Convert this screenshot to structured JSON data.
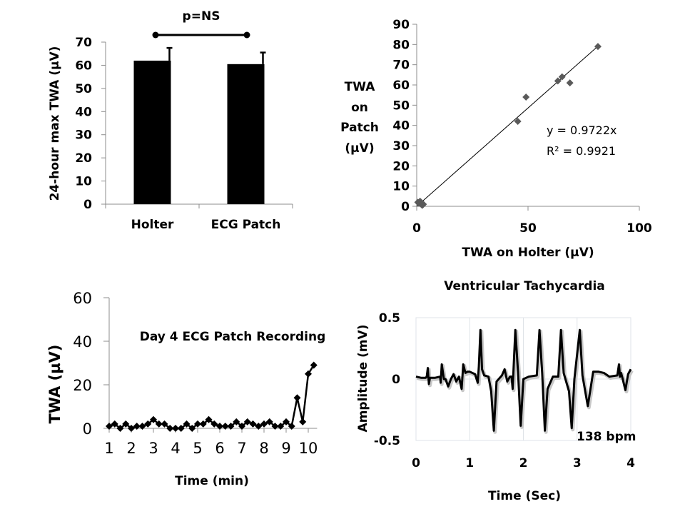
{
  "chart_data": [
    {
      "id": "bar",
      "type": "bar",
      "title": "",
      "categories": [
        "Holter",
        "ECG Patch"
      ],
      "values": [
        62,
        60.5
      ],
      "error_upper": [
        5.5,
        5
      ],
      "ylabel": "24-hour max TWA (µV)",
      "xlabel": "",
      "ylim": [
        0,
        70
      ],
      "yticks": [
        0,
        10,
        20,
        30,
        40,
        50,
        60,
        70
      ],
      "bar_color": "#000000",
      "annotation": "p=NS"
    },
    {
      "id": "scatter",
      "type": "scatter",
      "xlabel": "TWA on Holter (µV)",
      "ylabel_lines": [
        "TWA",
        "on",
        "Patch",
        "(µV)"
      ],
      "xlim": [
        0,
        100
      ],
      "ylim": [
        0,
        90
      ],
      "xticks": [
        0,
        50,
        100
      ],
      "yticks": [
        0,
        10,
        20,
        30,
        40,
        50,
        60,
        70,
        80,
        90
      ],
      "points": [
        {
          "x": 0.5,
          "y": 2
        },
        {
          "x": 1,
          "y": 1.5
        },
        {
          "x": 1.5,
          "y": 2.5
        },
        {
          "x": 2,
          "y": 1
        },
        {
          "x": 2.5,
          "y": 0.5
        },
        {
          "x": 3,
          "y": 1
        },
        {
          "x": 2,
          "y": 2
        },
        {
          "x": 45.4,
          "y": 42
        },
        {
          "x": 49.1,
          "y": 54
        },
        {
          "x": 63.4,
          "y": 62
        },
        {
          "x": 65.3,
          "y": 64
        },
        {
          "x": 68.8,
          "y": 61
        },
        {
          "x": 81.4,
          "y": 79
        }
      ],
      "trendline": {
        "slope": 0.9722,
        "x_range": [
          0,
          81.4
        ]
      },
      "equation": "y = 0.9722x",
      "r_squared": "R² = 0.9921",
      "marker_color": "#5a5a5a"
    },
    {
      "id": "line",
      "type": "line",
      "title": "Day 4 ECG Patch Recording",
      "xlabel": "Time (min)",
      "ylabel": "TWA (µV)",
      "xlim": [
        1,
        10.25
      ],
      "ylim": [
        0,
        60
      ],
      "xticks": [
        1,
        2,
        3,
        4,
        5,
        6,
        7,
        8,
        9,
        10
      ],
      "yticks": [
        0,
        20,
        40,
        60
      ],
      "x": [
        1,
        1.25,
        1.5,
        1.75,
        2,
        2.25,
        2.5,
        2.75,
        3,
        3.25,
        3.5,
        3.75,
        4,
        4.25,
        4.5,
        4.75,
        5,
        5.25,
        5.5,
        5.75,
        6,
        6.25,
        6.5,
        6.75,
        7,
        7.25,
        7.5,
        7.75,
        8,
        8.25,
        8.5,
        8.75,
        9,
        9.25,
        9.5,
        9.75,
        10,
        10.25
      ],
      "y": [
        1,
        2,
        0,
        2,
        0,
        1,
        1,
        2,
        4,
        2,
        2,
        0,
        0,
        0,
        2,
        0,
        2,
        2,
        4,
        2,
        1,
        1,
        1,
        3,
        1,
        3,
        2,
        1,
        2,
        3,
        1,
        1,
        3,
        1,
        14,
        3,
        25,
        29
      ]
    },
    {
      "id": "ecg",
      "type": "line",
      "title": "Ventricular Tachycardia",
      "xlabel": "Time (Sec)",
      "ylabel": "Amplitude (mV)",
      "xlim": [
        0,
        4
      ],
      "ylim": [
        -0.5,
        0.5
      ],
      "xticks": [
        0,
        1,
        2,
        3,
        4
      ],
      "yticks": [
        -0.5,
        0,
        0.5
      ],
      "ytick_labels": [
        "-0.5",
        "0",
        "0.5"
      ],
      "grid": true,
      "annotation": "138 bpm",
      "x": [
        0,
        0.1,
        0.18,
        0.2,
        0.22,
        0.24,
        0.26,
        0.35,
        0.45,
        0.46,
        0.48,
        0.5,
        0.52,
        0.55,
        0.6,
        0.65,
        0.7,
        0.75,
        0.8,
        0.85,
        0.88,
        0.92,
        0.96,
        1.0,
        1.1,
        1.15,
        1.17,
        1.2,
        1.23,
        1.27,
        1.35,
        1.4,
        1.45,
        1.5,
        1.6,
        1.65,
        1.7,
        1.75,
        1.78,
        1.8,
        1.85,
        1.9,
        1.95,
        2.0,
        2.1,
        2.25,
        2.3,
        2.35,
        2.4,
        2.45,
        2.55,
        2.65,
        2.7,
        2.75,
        2.85,
        2.9,
        2.95,
        3.05,
        3.1,
        3.2,
        3.3,
        3.4,
        3.5,
        3.6,
        3.75,
        3.78,
        3.8,
        3.82,
        3.85,
        3.9,
        3.95,
        4.0
      ],
      "y": [
        0.02,
        0.01,
        0.01,
        0.02,
        0.09,
        -0.04,
        0.01,
        0.01,
        0.02,
        -0.03,
        0.12,
        0.06,
        0.0,
        0.0,
        -0.06,
        0.0,
        0.04,
        -0.02,
        0.02,
        -0.08,
        0.12,
        0.05,
        0.06,
        0.06,
        0.04,
        -0.03,
        0.1,
        0.4,
        0.08,
        0.03,
        0.02,
        -0.1,
        -0.42,
        -0.02,
        0.03,
        0.08,
        -0.02,
        0.02,
        0.02,
        -0.08,
        0.4,
        0.06,
        -0.38,
        0.0,
        0.02,
        0.03,
        0.4,
        0.05,
        -0.42,
        -0.08,
        0.02,
        0.02,
        0.4,
        0.05,
        -0.1,
        -0.4,
        0.0,
        0.4,
        0.03,
        -0.22,
        0.06,
        0.06,
        0.05,
        0.02,
        0.03,
        0.12,
        0.02,
        0.05,
        0.0,
        -0.09,
        0.04,
        0.08
      ]
    }
  ]
}
